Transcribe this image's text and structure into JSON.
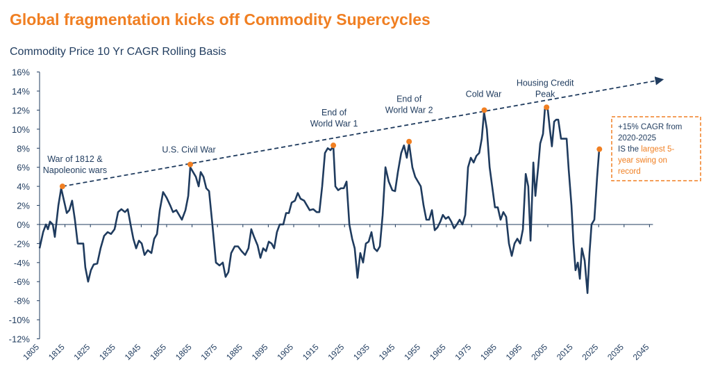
{
  "chart_data": {
    "type": "line",
    "title": "Global fragmentation kicks off Commodity Supercycles",
    "subtitle": "Commodity Price 10 Yr CAGR Rolling Basis",
    "color": "#1f3b5e",
    "x": [
      1805.0,
      1806.4,
      1807.5,
      1808.3,
      1809.1,
      1810.2,
      1811.0,
      1812.4,
      1813.5,
      1814.6,
      1815.7,
      1816.7,
      1817.8,
      1818.9,
      1820.0,
      1822.2,
      1823.0,
      1824.1,
      1825.2,
      1826.3,
      1827.7,
      1829.0,
      1830.4,
      1831.8,
      1833.1,
      1834.5,
      1835.9,
      1837.2,
      1838.6,
      1839.7,
      1840.8,
      1841.9,
      1843.0,
      1844.1,
      1845.2,
      1846.3,
      1847.6,
      1849.0,
      1850.1,
      1851.2,
      1852.3,
      1853.6,
      1855.0,
      1856.4,
      1857.5,
      1858.8,
      1859.9,
      1861.0,
      1862.4,
      1863.5,
      1864.3,
      1865.4,
      1866.5,
      1867.6,
      1868.4,
      1869.5,
      1870.6,
      1871.7,
      1873.0,
      1874.4,
      1875.8,
      1877.1,
      1878.2,
      1879.3,
      1880.4,
      1881.8,
      1883.1,
      1884.5,
      1885.9,
      1887.2,
      1888.3,
      1889.4,
      1890.8,
      1891.9,
      1893.0,
      1894.1,
      1895.2,
      1896.3,
      1897.3,
      1898.4,
      1899.5,
      1900.9,
      1902.0,
      1903.1,
      1904.2,
      1905.5,
      1906.6,
      1907.7,
      1909.1,
      1910.2,
      1911.3,
      1912.7,
      1914.0,
      1915.1,
      1916.2,
      1917.3,
      1918.4,
      1919.5,
      1920.6,
      1921.4,
      1922.5,
      1923.6,
      1924.7,
      1925.8,
      1926.9,
      1928.0,
      1929.0,
      1930.1,
      1931.2,
      1932.3,
      1933.4,
      1934.5,
      1935.6,
      1936.7,
      1937.8,
      1938.9,
      1940.0,
      1941.1,
      1942.4,
      1943.8,
      1944.9,
      1946.0,
      1947.3,
      1948.4,
      1949.5,
      1950.4,
      1951.7,
      1952.8,
      1953.9,
      1955.0,
      1956.1,
      1957.2,
      1958.3,
      1959.4,
      1960.5,
      1961.6,
      1962.7,
      1963.7,
      1964.8,
      1965.9,
      1967.0,
      1968.1,
      1969.2,
      1970.3,
      1971.4,
      1972.5,
      1973.6,
      1974.7,
      1975.8,
      1976.9,
      1978.0,
      1979.0,
      1979.9,
      1981.0,
      1982.1,
      1983.1,
      1984.2,
      1985.3,
      1986.4,
      1987.5,
      1988.6,
      1989.7,
      1990.8,
      1991.9,
      1993.0,
      1994.1,
      1995.2,
      1996.3,
      1997.3,
      1998.2,
      1999.3,
      2000.1,
      2001.2,
      2002.0,
      2003.1,
      2003.9,
      2005.0,
      2005.8,
      2006.6,
      2007.5,
      2008.3,
      2009.1,
      2010.2,
      2011.3,
      2012.4,
      2013.2,
      2014.3,
      2015.1,
      2015.9,
      2016.8,
      2017.6,
      2018.4,
      2019.5,
      2020.6,
      2021.4,
      2022.2,
      2023.3,
      2024.4,
      2025.2
    ],
    "values": [
      -2.5,
      -0.8,
      0,
      -0.5,
      0.3,
      0,
      -1.3,
      2,
      3.8,
      2.5,
      1.2,
      1.5,
      2.5,
      0.5,
      -2,
      -2,
      -4.5,
      -6,
      -4.8,
      -4.2,
      -4.1,
      -2.5,
      -1.2,
      -0.8,
      -1,
      -0.5,
      1.3,
      1.6,
      1.3,
      1.6,
      0,
      -1.5,
      -2.5,
      -1.7,
      -2,
      -3.2,
      -2.7,
      -3,
      -1.5,
      -1,
      1.5,
      3.4,
      2.8,
      2,
      1.3,
      1.5,
      1,
      0.5,
      1.5,
      3,
      6,
      5.5,
      5,
      4,
      5.5,
      5,
      3.8,
      3.5,
      0,
      -4,
      -4.3,
      -4,
      -5.5,
      -5,
      -3,
      -2.3,
      -2.3,
      -2.8,
      -3.2,
      -2.5,
      -0.5,
      -1.3,
      -2.2,
      -3.5,
      -2.5,
      -2.8,
      -1.8,
      -2,
      -2.5,
      -0.8,
      0,
      0,
      1.2,
      1.2,
      2.3,
      2.5,
      3.3,
      2.7,
      2.5,
      2,
      1.5,
      1.6,
      1.3,
      1.3,
      4,
      7.5,
      8,
      7.8,
      8.2,
      4,
      3.6,
      3.8,
      3.8,
      4.5,
      0,
      -1.5,
      -2.5,
      -5.6,
      -3,
      -4,
      -2,
      -1.8,
      -0.8,
      -2.5,
      -2.8,
      -2.3,
      1,
      6,
      4.5,
      3.6,
      3.5,
      5.5,
      7.5,
      8.3,
      7,
      8.5,
      6,
      5,
      4.5,
      4,
      2,
      0.5,
      0.5,
      1.5,
      -0.6,
      -0.3,
      0.3,
      1,
      0.6,
      0.8,
      0.3,
      -0.4,
      0,
      0.5,
      0,
      1,
      6,
      7,
      6.5,
      7.2,
      7.5,
      9,
      11.8,
      10,
      6,
      4,
      1.8,
      1.8,
      0.5,
      1.3,
      0.8,
      -2,
      -3.3,
      -2,
      -1.5,
      -2,
      -0.5,
      5.3,
      4,
      -1.7,
      6.5,
      3,
      6,
      8.5,
      9.5,
      12.3,
      12,
      10,
      8.2,
      10.8,
      11,
      11,
      9,
      9,
      9,
      5.8,
      2,
      -2,
      -4.8,
      -4,
      -5.7,
      -2.5,
      -3.8,
      -7.2,
      -3,
      0,
      0.5,
      5,
      7.8
    ],
    "xlim": [
      1805,
      2045
    ],
    "xticks": [
      1805,
      1815,
      1825,
      1835,
      1845,
      1855,
      1865,
      1875,
      1885,
      1895,
      1905,
      1915,
      1925,
      1935,
      1945,
      1955,
      1965,
      1975,
      1985,
      1995,
      2005,
      2015,
      2025,
      2035,
      2045
    ],
    "ylim": [
      -12,
      16
    ],
    "yticks": [
      {
        "value": 16,
        "label": "16%"
      },
      {
        "value": 14,
        "label": "14%"
      },
      {
        "value": 12,
        "label": "12%"
      },
      {
        "value": 10,
        "label": "10%"
      },
      {
        "value": 8,
        "label": "8%"
      },
      {
        "value": 6,
        "label": "6%"
      },
      {
        "value": 4,
        "label": "4%"
      },
      {
        "value": 2,
        "label": "2%"
      },
      {
        "value": 0,
        "label": "0%"
      },
      {
        "value": -2,
        "label": "-2%"
      },
      {
        "value": -4,
        "label": "-4%"
      },
      {
        "value": -6,
        "label": "-6%"
      },
      {
        "value": -8,
        "label": "-8%"
      },
      {
        "value": -10,
        "label": "-10%"
      },
      {
        "value": -12,
        "label": "-12%"
      }
    ],
    "annotation_color": "#f07f22",
    "annotations": [
      {
        "x": 1814.0,
        "y": 4.0,
        "label": [
          "War of 1812 &",
          "Napoleonic wars"
        ]
      },
      {
        "x": 1864.3,
        "y": 6.3,
        "label": [
          "U.S. Civil War"
        ]
      },
      {
        "x": 1920.6,
        "y": 8.3,
        "label": [
          "End of",
          "World War 1"
        ]
      },
      {
        "x": 1950.4,
        "y": 8.7,
        "label": [
          "End of",
          "World War 2"
        ]
      },
      {
        "x": 1980.0,
        "y": 12.0,
        "label": [
          "Cold War"
        ]
      },
      {
        "x": 2004.5,
        "y": 12.3,
        "label": [
          "Housing Credit",
          "Peak"
        ]
      },
      {
        "x": 2025.3,
        "y": 7.9,
        "label": []
      }
    ],
    "trend_line": {
      "x": [
        1814.0,
        2050.0
      ],
      "y": [
        4.0,
        15.2
      ]
    },
    "callout": {
      "lines": [
        [
          {
            "text": "+15% CAGR from",
            "color": "#1f3b5e"
          }
        ],
        [
          {
            "text": "2020-2025",
            "color": "#1f3b5e"
          }
        ],
        [
          {
            "text": " IS the ",
            "color": "#1f3b5e"
          },
          {
            "text": "largest  5-",
            "color": "#f07f22"
          }
        ],
        [
          {
            "text": "year swing on",
            "color": "#f07f22"
          }
        ],
        [
          {
            "text": "record",
            "color": "#f07f22"
          }
        ]
      ]
    }
  }
}
